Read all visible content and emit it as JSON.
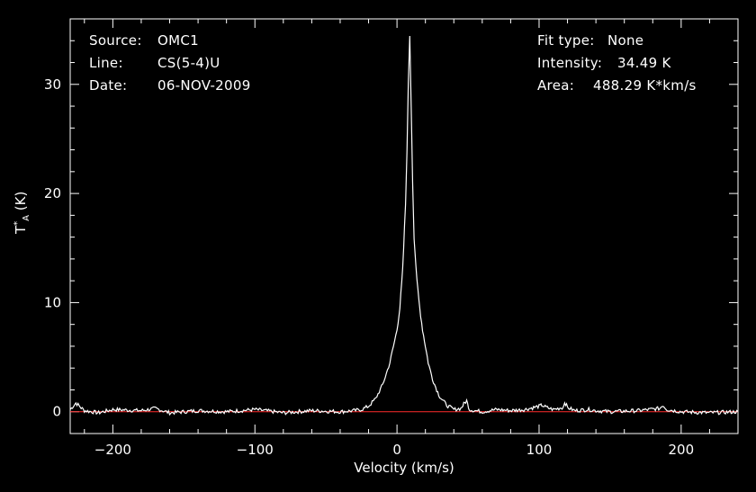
{
  "info": {
    "source_label": "Source:",
    "source_value": "OMC1",
    "line_label": "Line:",
    "line_value": "CS(5-4)U",
    "date_label": "Date:",
    "date_value": "06-NOV-2009",
    "fit_label": "Fit type:",
    "fit_value": "None",
    "intensity_label": "Intensity:",
    "intensity_value": "34.49 K",
    "area_label": "Area:",
    "area_value": "488.29 K*km/s"
  },
  "colors": {
    "background": "#000000",
    "spectrum": "#ffffff",
    "baseline": "#ff2a2a",
    "axes": "#ffffff"
  },
  "chart_data": {
    "type": "line",
    "xlabel": "Velocity (km/s)",
    "ylabel_main": "T",
    "ylabel_sup": "*",
    "ylabel_sub": "A",
    "ylabel_unit": " (K)",
    "xlim": [
      -230,
      240
    ],
    "ylim": [
      -2,
      36
    ],
    "xticks": [
      -200,
      -100,
      0,
      100,
      200
    ],
    "xtick_labels": [
      "-200",
      "-100",
      "0",
      "100",
      "200"
    ],
    "yticks": [
      0,
      10,
      20,
      30
    ],
    "ytick_labels": [
      "0",
      "10",
      "20",
      "30"
    ],
    "baseline": 0,
    "series": [
      {
        "x": [
          -230,
          -226,
          -220,
          -210,
          -200,
          -180,
          -170,
          -160,
          -140,
          -120,
          -100,
          -80,
          -60,
          -40,
          -30,
          -25,
          -20,
          -15,
          -10,
          -5,
          0,
          2,
          4,
          6,
          7,
          8,
          9,
          10,
          11,
          12,
          14,
          16,
          18,
          20,
          22,
          25,
          28,
          30,
          35,
          40,
          45,
          47,
          49,
          51,
          55,
          60,
          70,
          80,
          90,
          100,
          102,
          105,
          110,
          117,
          118,
          120,
          125,
          135,
          140,
          150,
          170,
          185,
          187,
          190,
          200,
          220,
          240
        ],
        "y": [
          0.2,
          0.8,
          0.1,
          -0.1,
          0.2,
          0.1,
          0.3,
          -0.1,
          0.1,
          0.0,
          0.2,
          -0.1,
          0.1,
          0.0,
          0.1,
          0.2,
          0.5,
          1.2,
          2.5,
          4.5,
          7.5,
          9.5,
          13.0,
          19.0,
          24.0,
          30.0,
          34.49,
          28.0,
          21.0,
          16.0,
          12.0,
          9.5,
          7.5,
          6.0,
          4.5,
          3.0,
          2.0,
          1.4,
          0.6,
          0.2,
          0.3,
          0.7,
          1.0,
          0.2,
          0.1,
          0.0,
          0.2,
          0.1,
          0.2,
          0.5,
          0.6,
          0.4,
          0.2,
          0.4,
          0.9,
          0.4,
          0.1,
          0.2,
          0.1,
          0.0,
          0.1,
          0.3,
          0.6,
          0.2,
          0.0,
          -0.1,
          0.0
        ]
      }
    ]
  }
}
